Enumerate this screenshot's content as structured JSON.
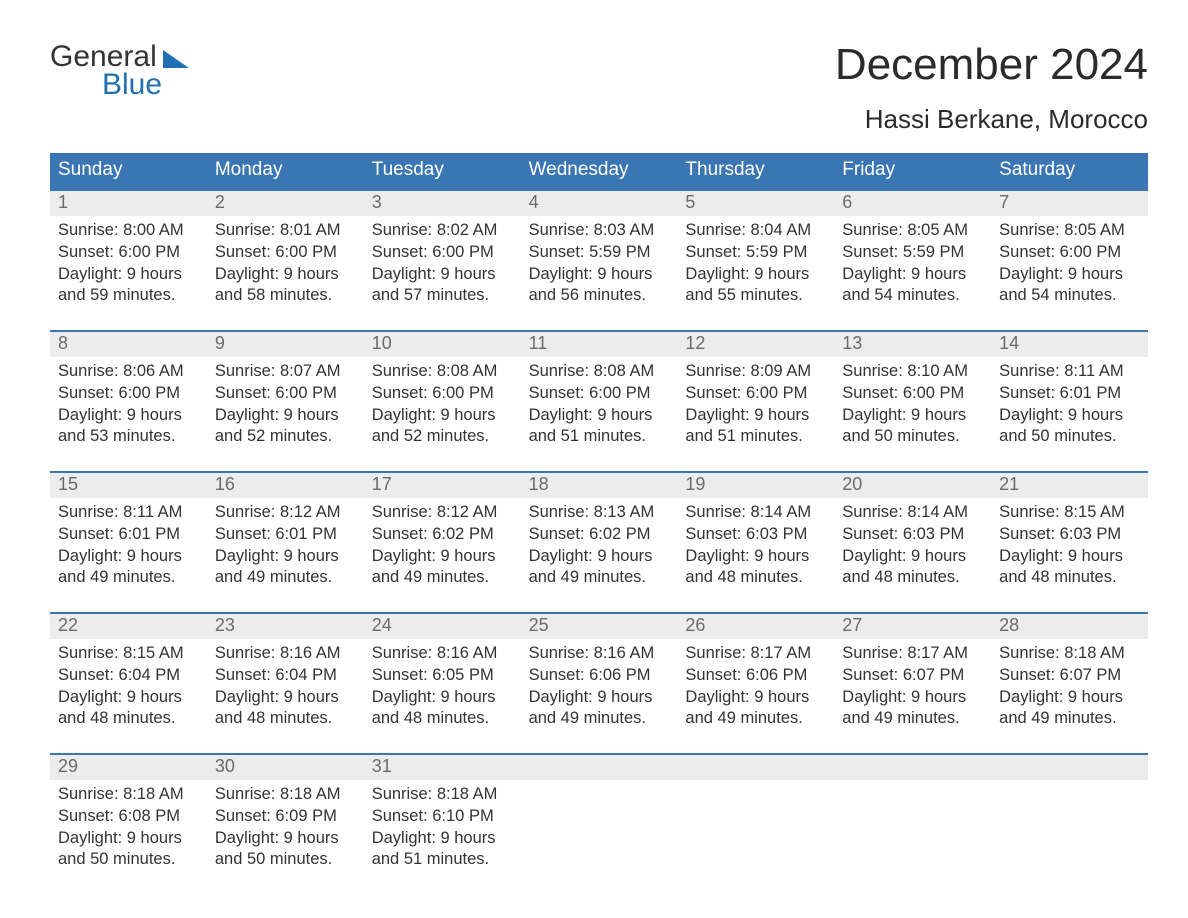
{
  "brand": {
    "word1": "General",
    "word2": "Blue"
  },
  "title": "December 2024",
  "location": "Hassi Berkane, Morocco",
  "colors": {
    "header_bg": "#3a76b4",
    "header_text": "#ffffff",
    "daynum_bg": "#ececec",
    "daynum_text": "#6b6b6b",
    "body_text": "#333333",
    "week_border": "#3a76b4",
    "logo_accent": "#1f6fb2",
    "page_bg": "#ffffff"
  },
  "weekdays": [
    "Sunday",
    "Monday",
    "Tuesday",
    "Wednesday",
    "Thursday",
    "Friday",
    "Saturday"
  ],
  "weeks": [
    [
      {
        "n": "1",
        "sr": "8:00 AM",
        "ss": "6:00 PM",
        "d1": "9 hours",
        "d2": "and 59 minutes."
      },
      {
        "n": "2",
        "sr": "8:01 AM",
        "ss": "6:00 PM",
        "d1": "9 hours",
        "d2": "and 58 minutes."
      },
      {
        "n": "3",
        "sr": "8:02 AM",
        "ss": "6:00 PM",
        "d1": "9 hours",
        "d2": "and 57 minutes."
      },
      {
        "n": "4",
        "sr": "8:03 AM",
        "ss": "5:59 PM",
        "d1": "9 hours",
        "d2": "and 56 minutes."
      },
      {
        "n": "5",
        "sr": "8:04 AM",
        "ss": "5:59 PM",
        "d1": "9 hours",
        "d2": "and 55 minutes."
      },
      {
        "n": "6",
        "sr": "8:05 AM",
        "ss": "5:59 PM",
        "d1": "9 hours",
        "d2": "and 54 minutes."
      },
      {
        "n": "7",
        "sr": "8:05 AM",
        "ss": "6:00 PM",
        "d1": "9 hours",
        "d2": "and 54 minutes."
      }
    ],
    [
      {
        "n": "8",
        "sr": "8:06 AM",
        "ss": "6:00 PM",
        "d1": "9 hours",
        "d2": "and 53 minutes."
      },
      {
        "n": "9",
        "sr": "8:07 AM",
        "ss": "6:00 PM",
        "d1": "9 hours",
        "d2": "and 52 minutes."
      },
      {
        "n": "10",
        "sr": "8:08 AM",
        "ss": "6:00 PM",
        "d1": "9 hours",
        "d2": "and 52 minutes."
      },
      {
        "n": "11",
        "sr": "8:08 AM",
        "ss": "6:00 PM",
        "d1": "9 hours",
        "d2": "and 51 minutes."
      },
      {
        "n": "12",
        "sr": "8:09 AM",
        "ss": "6:00 PM",
        "d1": "9 hours",
        "d2": "and 51 minutes."
      },
      {
        "n": "13",
        "sr": "8:10 AM",
        "ss": "6:00 PM",
        "d1": "9 hours",
        "d2": "and 50 minutes."
      },
      {
        "n": "14",
        "sr": "8:11 AM",
        "ss": "6:01 PM",
        "d1": "9 hours",
        "d2": "and 50 minutes."
      }
    ],
    [
      {
        "n": "15",
        "sr": "8:11 AM",
        "ss": "6:01 PM",
        "d1": "9 hours",
        "d2": "and 49 minutes."
      },
      {
        "n": "16",
        "sr": "8:12 AM",
        "ss": "6:01 PM",
        "d1": "9 hours",
        "d2": "and 49 minutes."
      },
      {
        "n": "17",
        "sr": "8:12 AM",
        "ss": "6:02 PM",
        "d1": "9 hours",
        "d2": "and 49 minutes."
      },
      {
        "n": "18",
        "sr": "8:13 AM",
        "ss": "6:02 PM",
        "d1": "9 hours",
        "d2": "and 49 minutes."
      },
      {
        "n": "19",
        "sr": "8:14 AM",
        "ss": "6:03 PM",
        "d1": "9 hours",
        "d2": "and 48 minutes."
      },
      {
        "n": "20",
        "sr": "8:14 AM",
        "ss": "6:03 PM",
        "d1": "9 hours",
        "d2": "and 48 minutes."
      },
      {
        "n": "21",
        "sr": "8:15 AM",
        "ss": "6:03 PM",
        "d1": "9 hours",
        "d2": "and 48 minutes."
      }
    ],
    [
      {
        "n": "22",
        "sr": "8:15 AM",
        "ss": "6:04 PM",
        "d1": "9 hours",
        "d2": "and 48 minutes."
      },
      {
        "n": "23",
        "sr": "8:16 AM",
        "ss": "6:04 PM",
        "d1": "9 hours",
        "d2": "and 48 minutes."
      },
      {
        "n": "24",
        "sr": "8:16 AM",
        "ss": "6:05 PM",
        "d1": "9 hours",
        "d2": "and 48 minutes."
      },
      {
        "n": "25",
        "sr": "8:16 AM",
        "ss": "6:06 PM",
        "d1": "9 hours",
        "d2": "and 49 minutes."
      },
      {
        "n": "26",
        "sr": "8:17 AM",
        "ss": "6:06 PM",
        "d1": "9 hours",
        "d2": "and 49 minutes."
      },
      {
        "n": "27",
        "sr": "8:17 AM",
        "ss": "6:07 PM",
        "d1": "9 hours",
        "d2": "and 49 minutes."
      },
      {
        "n": "28",
        "sr": "8:18 AM",
        "ss": "6:07 PM",
        "d1": "9 hours",
        "d2": "and 49 minutes."
      }
    ],
    [
      {
        "n": "29",
        "sr": "8:18 AM",
        "ss": "6:08 PM",
        "d1": "9 hours",
        "d2": "and 50 minutes."
      },
      {
        "n": "30",
        "sr": "8:18 AM",
        "ss": "6:09 PM",
        "d1": "9 hours",
        "d2": "and 50 minutes."
      },
      {
        "n": "31",
        "sr": "8:18 AM",
        "ss": "6:10 PM",
        "d1": "9 hours",
        "d2": "and 51 minutes."
      },
      null,
      null,
      null,
      null
    ]
  ],
  "labels": {
    "sunrise": "Sunrise:",
    "sunset": "Sunset:",
    "daylight": "Daylight:"
  }
}
